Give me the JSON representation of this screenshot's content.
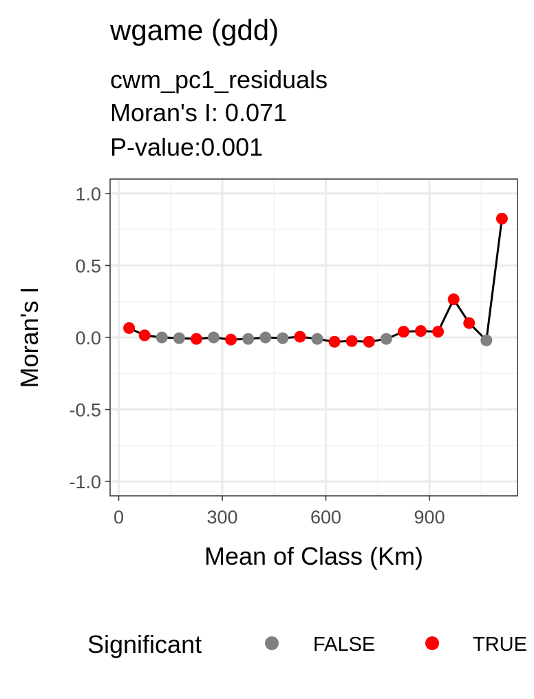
{
  "chart_data": {
    "type": "line",
    "title": "wgame (gdd)",
    "subtitle_lines": [
      "cwm_pc1_residuals",
      "Moran's I: 0.071",
      "P-value:0.001"
    ],
    "xlabel": "Mean of Class (Km)",
    "ylabel": "Moran's I",
    "xlim": [
      -25,
      1155
    ],
    "ylim": [
      -1.1,
      1.1
    ],
    "x_ticks": [
      0,
      300,
      600,
      900
    ],
    "y_ticks": [
      1.0,
      0.5,
      0.0,
      -0.5,
      -1.0
    ],
    "x_tick_labels": [
      "0",
      "300",
      "600",
      "900"
    ],
    "y_tick_labels": [
      "1.0",
      "0.5",
      "0.0",
      "-0.5",
      "-1.0"
    ],
    "grid": true,
    "legend": {
      "title": "Significant",
      "position": "bottom",
      "entries": [
        {
          "label": "FALSE",
          "color": "#808080"
        },
        {
          "label": "TRUE",
          "color": "#ff0000"
        }
      ]
    },
    "line_color": "#000000",
    "x": [
      30,
      75,
      125,
      175,
      225,
      275,
      325,
      375,
      425,
      475,
      525,
      575,
      625,
      675,
      725,
      775,
      825,
      875,
      925,
      970,
      1015,
      1065,
      1110
    ],
    "y": [
      0.065,
      0.015,
      0.0,
      -0.005,
      -0.01,
      0.0,
      -0.015,
      -0.01,
      0.0,
      -0.005,
      0.005,
      -0.01,
      -0.03,
      -0.025,
      -0.03,
      -0.01,
      0.04,
      0.045,
      0.04,
      0.265,
      0.1,
      -0.02,
      0.825
    ],
    "significant": [
      true,
      true,
      false,
      false,
      true,
      false,
      true,
      false,
      false,
      false,
      true,
      false,
      true,
      true,
      true,
      false,
      true,
      true,
      true,
      true,
      true,
      false,
      true
    ]
  }
}
